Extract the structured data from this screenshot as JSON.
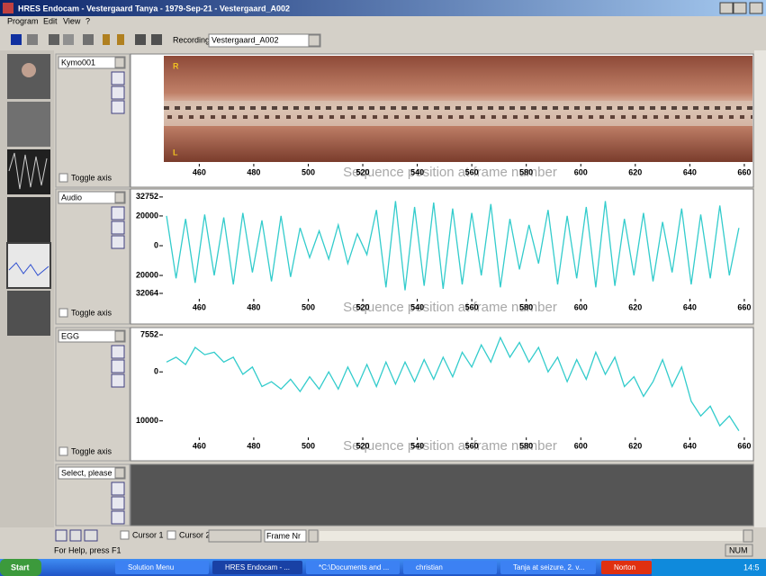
{
  "window": {
    "title": "HRES Endocam - Vestergaard Tanya - 1979-Sep-21 - Vestergaard_A002",
    "menu": [
      "Program",
      "Edit",
      "View",
      "?"
    ],
    "toolbar": {
      "recording_label": "Recording",
      "recording_value": "Vestergaard_A002"
    }
  },
  "frame_axis": {
    "label": "Sequence position at frame number",
    "xlim": [
      447,
      663
    ],
    "xticks": [
      460,
      480,
      500,
      520,
      540,
      560,
      580,
      600,
      620,
      640,
      660
    ]
  },
  "sample_frames": [
    448,
    451.5,
    455,
    458.5,
    462,
    465.5,
    469,
    472.5,
    476,
    479.5,
    483,
    486.5,
    490,
    493.5,
    497,
    500.5,
    504,
    507.5,
    511,
    514.5,
    518,
    521.5,
    525,
    528.5,
    532,
    535.5,
    539,
    542.5,
    546,
    549.5,
    553,
    556.5,
    560,
    563.5,
    567,
    570.5,
    574,
    577.5,
    581,
    584.5,
    588,
    591.5,
    595,
    598.5,
    602,
    605.5,
    609,
    612.5,
    616,
    619.5,
    623,
    626.5,
    630,
    633.5,
    637,
    640.5,
    644,
    647.5,
    651,
    654.5,
    658
  ],
  "panels": [
    {
      "selector": "Kymo001",
      "toggle": "Toggle axis",
      "marker_top": "R",
      "marker_bottom": "L"
    },
    {
      "selector": "Audio",
      "toggle": "Toggle axis",
      "color": "#33cccc",
      "ylim": [
        -34500,
        35700
      ],
      "yticks": [
        32752,
        20000,
        0,
        {
          "value": -20000,
          "label": "20000"
        },
        {
          "value": -32064,
          "label": "32064"
        }
      ],
      "values": [
        20000,
        -22000,
        18000,
        -25000,
        21000,
        -20000,
        19000,
        -26000,
        22000,
        -18000,
        17000,
        -24000,
        20000,
        -21000,
        12000,
        -8000,
        10000,
        -9000,
        14000,
        -12000,
        8000,
        -6000,
        24000,
        -28000,
        30000,
        -30000,
        26000,
        -27000,
        29000,
        -29000,
        25000,
        -26000,
        22000,
        -20000,
        28000,
        -28000,
        18000,
        -16000,
        14000,
        -12000,
        24000,
        -26000,
        20000,
        -22000,
        26000,
        -28000,
        30000,
        -27000,
        18000,
        -20000,
        22000,
        -24000,
        16000,
        -18000,
        25000,
        -26000,
        21000,
        -22000,
        27000,
        -20000,
        12000
      ]
    },
    {
      "selector": "EGG",
      "toggle": "Toggle axis",
      "color": "#33cccc",
      "ylim": [
        -13000,
        8300
      ],
      "yticks": [
        7552,
        0,
        {
          "value": -10000,
          "label": "10000"
        }
      ],
      "values": [
        2000,
        3000,
        1500,
        5000,
        3500,
        4000,
        2000,
        3000,
        -500,
        1000,
        -3000,
        -2000,
        -3500,
        -1500,
        -4000,
        -1000,
        -3500,
        0,
        -3500,
        1000,
        -3000,
        1500,
        -3000,
        2000,
        -2500,
        2000,
        -2000,
        2500,
        -1500,
        3000,
        -1000,
        4000,
        1000,
        5500,
        2000,
        7000,
        3000,
        6000,
        2000,
        5000,
        0,
        3000,
        -2000,
        2500,
        -1500,
        4000,
        -500,
        3000,
        -3000,
        -1000,
        -5000,
        -2000,
        2500,
        -3000,
        1000,
        -6000,
        -9000,
        -7000,
        -11000,
        -9000,
        -12000
      ]
    },
    {
      "selector": "Select, please"
    }
  ],
  "footer": {
    "cursor1": "Cursor 1",
    "cursor2": "Cursor 2",
    "frame_selector": "Frame Nr",
    "status": "For Help, press F1",
    "indicator": "NUM"
  },
  "taskbar": {
    "start": "Start",
    "tasks": [
      "Solution Menu",
      "HRES Endocam - ...",
      "*C:\\Documents and ...",
      "christian",
      "Tanja at seizure, 2. v...",
      "Norton"
    ],
    "clock": "14:5"
  }
}
